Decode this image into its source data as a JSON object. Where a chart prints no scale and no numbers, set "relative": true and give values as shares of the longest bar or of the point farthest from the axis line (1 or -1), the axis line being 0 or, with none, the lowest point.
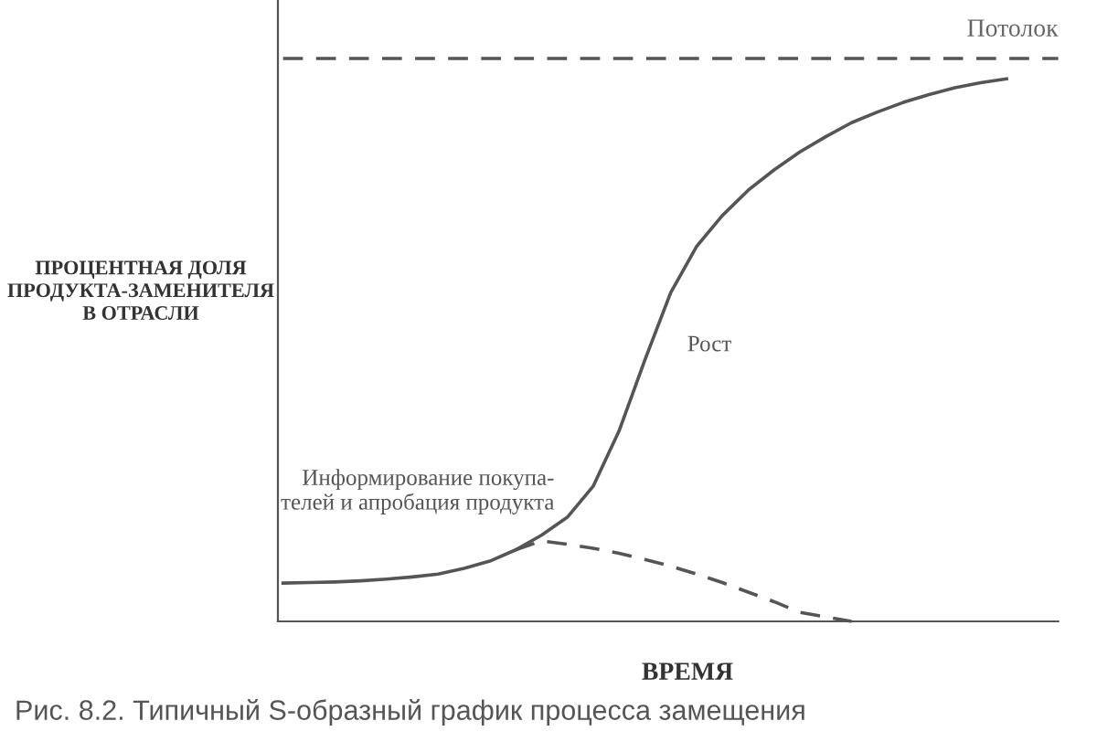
{
  "chart_data": {
    "type": "line",
    "relative": true,
    "xlabel": "ВРЕМЯ",
    "ylabel": "ПРОЦЕНТНАЯ ДОЛЯ\nПРОДУКТА-ЗАМЕНИТЕЛЯ\nВ ОТРАСЛИ",
    "categories": [
      null,
      null,
      null,
      null,
      null,
      null,
      null,
      null,
      null,
      null,
      null,
      null,
      null,
      null,
      null,
      null,
      null,
      null,
      null,
      null,
      null,
      null,
      null,
      null,
      null,
      null,
      null,
      null,
      null,
      null,
      null
    ],
    "series": [
      {
        "name": "Потолок",
        "color": "#555555",
        "line_style": "dashed",
        "values": [
          1,
          1,
          1,
          1,
          1,
          1,
          1,
          1,
          1,
          1,
          1,
          1,
          1,
          1,
          1,
          1,
          1,
          1,
          1,
          1,
          1,
          1,
          1,
          1,
          1,
          1,
          1,
          1,
          1,
          1,
          1
        ]
      },
      {
        "color": "#555555",
        "line_style": "solid",
        "values": [
          0.068,
          0.069,
          0.07,
          0.072,
          0.075,
          0.079,
          0.084,
          0.094,
          0.107,
          0.127,
          0.153,
          0.185,
          0.24,
          0.338,
          0.464,
          0.584,
          0.666,
          0.721,
          0.766,
          0.802,
          0.834,
          0.861,
          0.886,
          0.905,
          0.922,
          0.936,
          0.948,
          0.957,
          0.964,
          null,
          null
        ]
      },
      {
        "color": "#555555",
        "line_style": "dashed",
        "values": [
          null,
          null,
          null,
          null,
          null,
          null,
          null,
          null,
          null,
          0.127,
          0.143,
          0.137,
          0.13,
          0.121,
          0.11,
          0.098,
          0.084,
          0.069,
          0.052,
          0.035,
          0.016,
          0.008,
          0,
          null,
          null,
          null,
          null,
          null,
          null,
          null,
          null
        ]
      }
    ],
    "annotations": [
      "Информирование покупа-\nтелей и апробация продукта",
      "Рост",
      "Рис. 8.2. Типичный S-образный график процесса замещения"
    ],
    "legend": false,
    "marker": "none"
  }
}
